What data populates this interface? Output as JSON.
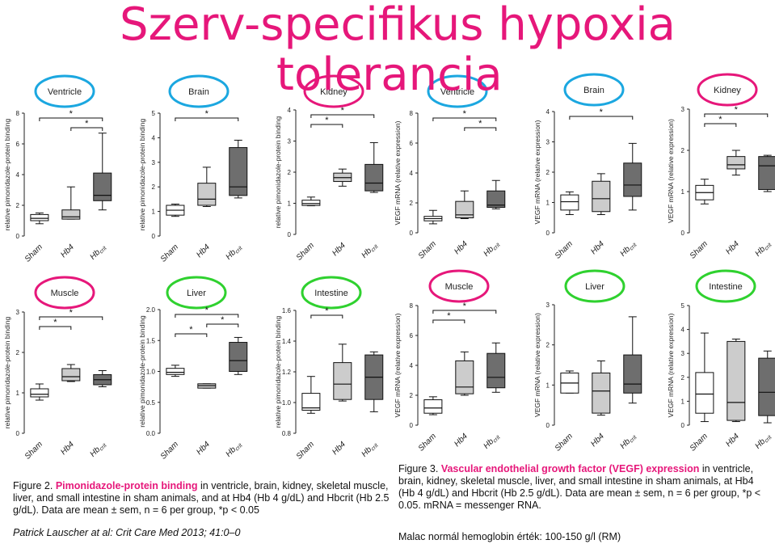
{
  "slide": {
    "title_line1": "Szerv-specifikus hypoxia",
    "title_line2": "tolerancia"
  },
  "fig2_caption": {
    "label": "Figure 2.",
    "highlight": "Pimonidazole-protein binding",
    "rest": " in ventricle, brain, kidney, skeletal muscle, liver, and small intestine in sham animals, and at Hb4 (Hb 4 g/dL) and Hbcrit (Hb 2.5 g/dL). Data are mean ± sem, n = 6 per group, *p < 0.05"
  },
  "fig3_caption": {
    "label": "Figure 3.",
    "highlight": "Vascular endothelial growth factor (VEGF) expression",
    "rest": " in ventricle, brain, kidney, skeletal muscle, liver, and small intestine in sham animals, at Hb4 (Hb 4 g/dL) and Hbcrit (Hb 2.5 g/dL). Data are mean ± sem, n = 6 per group, *p < 0.05. mRNA = messenger RNA."
  },
  "citation": "Patrick Lauscher  at al: Crit Care Med 2013; 41:0–0",
  "note": "Malac normál hemoglobin érték: 100-150 g/l (RM)",
  "colors": {
    "title": "#e6177a",
    "oval_pink": "#e6177a",
    "oval_blue": "#1ba7e0",
    "oval_green": "#2fd12f",
    "box_sham": "#ffffff",
    "box_hb4": "#cccccc",
    "box_hbcrit": "#6e6e6e"
  },
  "chart_data": [
    {
      "type": "box",
      "organ": "Ventricle",
      "oval": "blue",
      "ylabel": "relative pimonidazole-protein binding",
      "ylim": [
        0,
        8
      ],
      "yticks": [
        0,
        2,
        4,
        6,
        8
      ],
      "groups": [
        {
          "name": "Sham",
          "box": [
            1,
            1.1,
            1.2,
            1.4
          ],
          "wh": [
            0.8,
            1.5
          ]
        },
        {
          "name": "Hb4",
          "box": [
            1.1,
            1.2,
            1.3,
            1.7
          ],
          "wh": [
            1.1,
            3.2
          ]
        },
        {
          "name": "Hbcrit",
          "box": [
            2.3,
            2.6,
            2.7,
            4.1
          ],
          "wh": [
            1.7,
            6.7
          ]
        }
      ],
      "sig": [
        {
          "from": 0,
          "to": 2,
          "level": 1,
          "label": "*"
        },
        {
          "from": 1,
          "to": 2,
          "level": 2,
          "label": "*"
        }
      ]
    },
    {
      "type": "box",
      "organ": "Brain",
      "oval": "blue",
      "ylabel": "relative pimonidazole-protein binding",
      "ylim": [
        0,
        5
      ],
      "yticks": [
        0,
        1,
        2,
        3,
        4,
        5
      ],
      "groups": [
        {
          "name": "Sham",
          "box": [
            0.85,
            1.0,
            1.1,
            1.25
          ],
          "wh": [
            0.8,
            1.3
          ]
        },
        {
          "name": "Hb4",
          "box": [
            1.25,
            1.4,
            1.6,
            2.15
          ],
          "wh": [
            1.2,
            2.8
          ]
        },
        {
          "name": "Hbcrit",
          "box": [
            1.65,
            1.95,
            2.05,
            3.6
          ],
          "wh": [
            1.55,
            3.9
          ]
        }
      ],
      "sig": [
        {
          "from": 0,
          "to": 2,
          "level": 1,
          "label": "*"
        }
      ]
    },
    {
      "type": "box",
      "organ": "Kidney",
      "oval": "pink",
      "ylabel": "relative pimonidazole-protein binding",
      "ylim": [
        0,
        4
      ],
      "yticks": [
        0,
        1,
        2,
        3,
        4
      ],
      "groups": [
        {
          "name": "Sham",
          "box": [
            0.93,
            0.98,
            1.0,
            1.1
          ],
          "wh": [
            0.92,
            1.2
          ]
        },
        {
          "name": "Hb4",
          "box": [
            1.7,
            1.8,
            1.85,
            1.97
          ],
          "wh": [
            1.55,
            2.1
          ]
        },
        {
          "name": "Hbcrit",
          "box": [
            1.4,
            1.5,
            1.8,
            2.25
          ],
          "wh": [
            1.35,
            2.95
          ]
        }
      ],
      "sig": [
        {
          "from": 0,
          "to": 2,
          "level": 1,
          "label": "*"
        },
        {
          "from": 0,
          "to": 1,
          "level": 2,
          "label": "*"
        }
      ]
    },
    {
      "type": "box",
      "organ": "Ventricle",
      "oval": "blue",
      "ylabel": "VEGF mRNA (relative expression)",
      "ylim": [
        0,
        8
      ],
      "yticks": [
        0,
        2,
        4,
        6,
        8
      ],
      "groups": [
        {
          "name": "Sham",
          "box": [
            0.8,
            0.9,
            1.0,
            1.1
          ],
          "wh": [
            0.6,
            1.5
          ]
        },
        {
          "name": "Hb4",
          "box": [
            1.0,
            1.1,
            1.3,
            2.1
          ],
          "wh": [
            0.95,
            2.8
          ]
        },
        {
          "name": "Hbcrit",
          "box": [
            1.7,
            1.8,
            1.9,
            2.8
          ],
          "wh": [
            1.6,
            3.5
          ]
        }
      ],
      "sig": [
        {
          "from": 0,
          "to": 2,
          "level": 1,
          "label": "*"
        },
        {
          "from": 1,
          "to": 2,
          "level": 2,
          "label": "*"
        }
      ]
    },
    {
      "type": "box",
      "organ": "Brain",
      "oval": "blue",
      "ylabel": "VEGF mRNA (relative expression)",
      "ylim": [
        0,
        4
      ],
      "yticks": [
        0,
        1,
        2,
        3,
        4
      ],
      "groups": [
        {
          "name": "Sham",
          "box": [
            0.75,
            0.95,
            1.1,
            1.25
          ],
          "wh": [
            0.6,
            1.35
          ]
        },
        {
          "name": "Hb4",
          "box": [
            0.7,
            1.0,
            1.25,
            1.7
          ],
          "wh": [
            0.6,
            1.95
          ]
        },
        {
          "name": "Hbcrit",
          "box": [
            1.2,
            1.5,
            1.65,
            2.3
          ],
          "wh": [
            0.75,
            2.95
          ]
        }
      ],
      "sig": [
        {
          "from": 0,
          "to": 2,
          "level": 1,
          "label": "*"
        }
      ]
    },
    {
      "type": "box",
      "organ": "Kidney",
      "oval": "pink",
      "ylabel": "VEGF mRNA (relative expression)",
      "ylim": [
        0,
        3
      ],
      "yticks": [
        0,
        1,
        2,
        3
      ],
      "groups": [
        {
          "name": "Sham",
          "box": [
            0.8,
            0.95,
            1.0,
            1.15
          ],
          "wh": [
            0.7,
            1.3
          ]
        },
        {
          "name": "Hb4",
          "box": [
            1.55,
            1.6,
            1.7,
            1.85
          ],
          "wh": [
            1.4,
            2.0
          ]
        },
        {
          "name": "Hbcrit",
          "box": [
            1.05,
            1.55,
            1.7,
            1.85
          ],
          "wh": [
            1.0,
            1.88
          ]
        }
      ],
      "sig": [
        {
          "from": 0,
          "to": 2,
          "level": 1,
          "label": "*"
        },
        {
          "from": 0,
          "to": 1,
          "level": 2,
          "label": "*"
        }
      ]
    },
    {
      "type": "box",
      "organ": "Muscle",
      "oval": "pink",
      "ylabel": "relative pimonidazole-protein binding",
      "ylim": [
        0,
        3
      ],
      "yticks": [
        0,
        1,
        2,
        3
      ],
      "groups": [
        {
          "name": "Sham",
          "box": [
            0.9,
            0.93,
            1.0,
            1.1
          ],
          "wh": [
            0.82,
            1.22
          ]
        },
        {
          "name": "Hb4",
          "box": [
            1.3,
            1.35,
            1.45,
            1.6
          ],
          "wh": [
            1.28,
            1.7
          ]
        },
        {
          "name": "Hbcrit",
          "box": [
            1.2,
            1.3,
            1.35,
            1.45
          ],
          "wh": [
            1.15,
            1.55
          ]
        }
      ],
      "sig": [
        {
          "from": 0,
          "to": 2,
          "level": 1,
          "label": "*"
        },
        {
          "from": 0,
          "to": 1,
          "level": 2,
          "label": "*"
        }
      ]
    },
    {
      "type": "box",
      "organ": "Liver",
      "oval": "green",
      "ylabel": "relative pimonidazole-protein binding",
      "ylim": [
        0,
        2
      ],
      "yticks": [
        0,
        0.5,
        1.0,
        1.5,
        2.0
      ],
      "groups": [
        {
          "name": "Sham",
          "box": [
            0.95,
            0.97,
            1.0,
            1.05
          ],
          "wh": [
            0.92,
            1.1
          ]
        },
        {
          "name": "Hb4",
          "box": [
            0.73,
            0.76,
            0.78,
            0.8
          ],
          "wh": [
            0.73,
            0.8
          ]
        },
        {
          "name": "Hbcrit",
          "box": [
            1.0,
            1.1,
            1.25,
            1.47
          ],
          "wh": [
            0.95,
            1.55
          ]
        }
      ],
      "sig": [
        {
          "from": 0,
          "to": 2,
          "level": 1,
          "label": "*"
        },
        {
          "from": 1,
          "to": 2,
          "level": 2,
          "label": "*"
        },
        {
          "from": 0,
          "to": 1,
          "level": 3,
          "label": "*"
        }
      ]
    },
    {
      "type": "box",
      "organ": "Intestine",
      "oval": "green",
      "ylabel": "relative pimonidazole-protein binding",
      "ylim": [
        0.8,
        1.6
      ],
      "yticks": [
        0.8,
        1.0,
        1.2,
        1.4,
        1.6
      ],
      "groups": [
        {
          "name": "Sham",
          "box": [
            0.95,
            0.96,
            0.97,
            1.06
          ],
          "wh": [
            0.93,
            1.17
          ]
        },
        {
          "name": "Hb4",
          "box": [
            1.02,
            1.05,
            1.19,
            1.26
          ],
          "wh": [
            1.01,
            1.38
          ]
        },
        {
          "name": "Hbcrit",
          "box": [
            1.02,
            1.12,
            1.21,
            1.31
          ],
          "wh": [
            0.94,
            1.33
          ]
        }
      ],
      "sig": [
        {
          "from": 0,
          "to": 1,
          "level": 1,
          "label": "*"
        }
      ]
    },
    {
      "type": "box",
      "organ": "Muscle",
      "oval": "pink",
      "ylabel": "VEGF mRNA (relative expression)",
      "ylim": [
        0,
        8
      ],
      "yticks": [
        0,
        2,
        4,
        6,
        8
      ],
      "groups": [
        {
          "name": "Sham",
          "box": [
            0.8,
            0.9,
            1.4,
            1.7
          ],
          "wh": [
            0.7,
            1.9
          ]
        },
        {
          "name": "Hb4",
          "box": [
            2.1,
            2.3,
            2.8,
            4.3
          ],
          "wh": [
            2.0,
            4.9
          ]
        },
        {
          "name": "Hbcrit",
          "box": [
            2.5,
            2.9,
            3.5,
            4.8
          ],
          "wh": [
            2.2,
            5.5
          ]
        }
      ],
      "sig": [
        {
          "from": 0,
          "to": 2,
          "level": 1,
          "label": "*"
        },
        {
          "from": 0,
          "to": 1,
          "level": 2,
          "label": "*"
        }
      ]
    },
    {
      "type": "box",
      "organ": "Liver",
      "oval": "green",
      "ylabel": "VEGF mRNA (relative expression)",
      "ylim": [
        0,
        3
      ],
      "yticks": [
        0,
        1,
        2,
        3
      ],
      "groups": [
        {
          "name": "Sham",
          "box": [
            0.8,
            1.0,
            1.1,
            1.3
          ],
          "wh": [
            0.8,
            1.35
          ]
        },
        {
          "name": "Hb4",
          "box": [
            0.3,
            0.7,
            1.0,
            1.3
          ],
          "wh": [
            0.25,
            1.6
          ]
        },
        {
          "name": "Hbcrit",
          "box": [
            0.8,
            1.0,
            1.05,
            1.75
          ],
          "wh": [
            0.55,
            2.7
          ]
        }
      ],
      "sig": []
    },
    {
      "type": "box",
      "organ": "Intestine",
      "oval": "green",
      "ylabel": "VEGF mRNA (relative expression)",
      "ylim": [
        0,
        5
      ],
      "yticks": [
        0,
        1,
        2,
        3,
        4,
        5
      ],
      "groups": [
        {
          "name": "Sham",
          "box": [
            0.5,
            1.2,
            1.4,
            2.2
          ],
          "wh": [
            0.15,
            3.85
          ]
        },
        {
          "name": "Hb4",
          "box": [
            0.2,
            0.6,
            1.3,
            3.5
          ],
          "wh": [
            0.15,
            3.6
          ]
        },
        {
          "name": "Hbcrit",
          "box": [
            0.4,
            1.0,
            1.75,
            2.8
          ],
          "wh": [
            0.1,
            3.1
          ]
        }
      ],
      "sig": []
    }
  ]
}
